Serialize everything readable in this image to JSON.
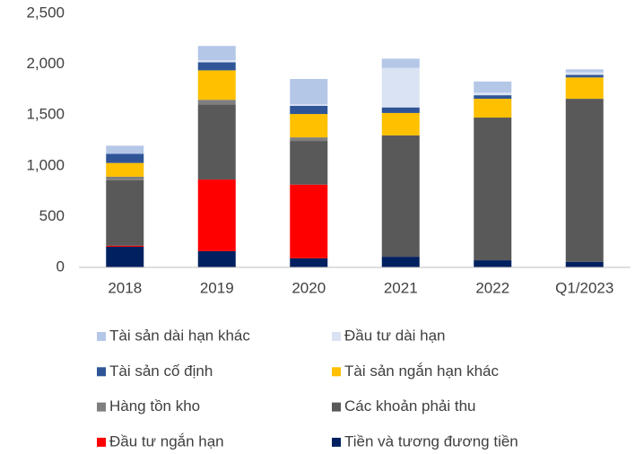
{
  "chart_data": {
    "type": "bar",
    "stacked": true,
    "categories": [
      "2018",
      "2019",
      "2020",
      "2021",
      "2022",
      "Q1/2023"
    ],
    "series": [
      {
        "name": "Tiền và tương đương tiền",
        "color": "#002060",
        "values": [
          203,
          160,
          90,
          105,
          70,
          55
        ]
      },
      {
        "name": "Đầu tư ngắn hạn",
        "color": "#ff0000",
        "values": [
          10,
          705,
          725,
          0,
          0,
          0
        ]
      },
      {
        "name": "Các khoản phải thu",
        "color": "#595959",
        "values": [
          645,
          740,
          430,
          1195,
          1405,
          1605
        ]
      },
      {
        "name": "Hàng tồn kho",
        "color": "#7f7f7f",
        "values": [
          35,
          45,
          35,
          0,
          0,
          0
        ]
      },
      {
        "name": "Tài sản ngắn hạn khác",
        "color": "#ffc000",
        "values": [
          135,
          290,
          230,
          220,
          185,
          210
        ]
      },
      {
        "name": "Tài sản cố định",
        "color": "#2f5597",
        "values": [
          90,
          80,
          80,
          55,
          35,
          25
        ]
      },
      {
        "name": "Đầu tư dài hạn",
        "color": "#dae3f3",
        "values": [
          0,
          20,
          15,
          390,
          25,
          25
        ]
      },
      {
        "name": "Tài sản dài hạn khác",
        "color": "#b4c7e7",
        "values": [
          80,
          140,
          250,
          90,
          110,
          30
        ]
      }
    ],
    "ylim": [
      0,
      2500
    ],
    "yticks": [
      0,
      {
        "value": 500,
        "label": "500"
      },
      {
        "value": 1000,
        "label": "1,000"
      },
      {
        "value": 1500,
        "label": "1,500"
      },
      {
        "value": 2000,
        "label": "2,000"
      },
      {
        "value": 2500,
        "label": "2,500"
      }
    ],
    "grid": false
  }
}
